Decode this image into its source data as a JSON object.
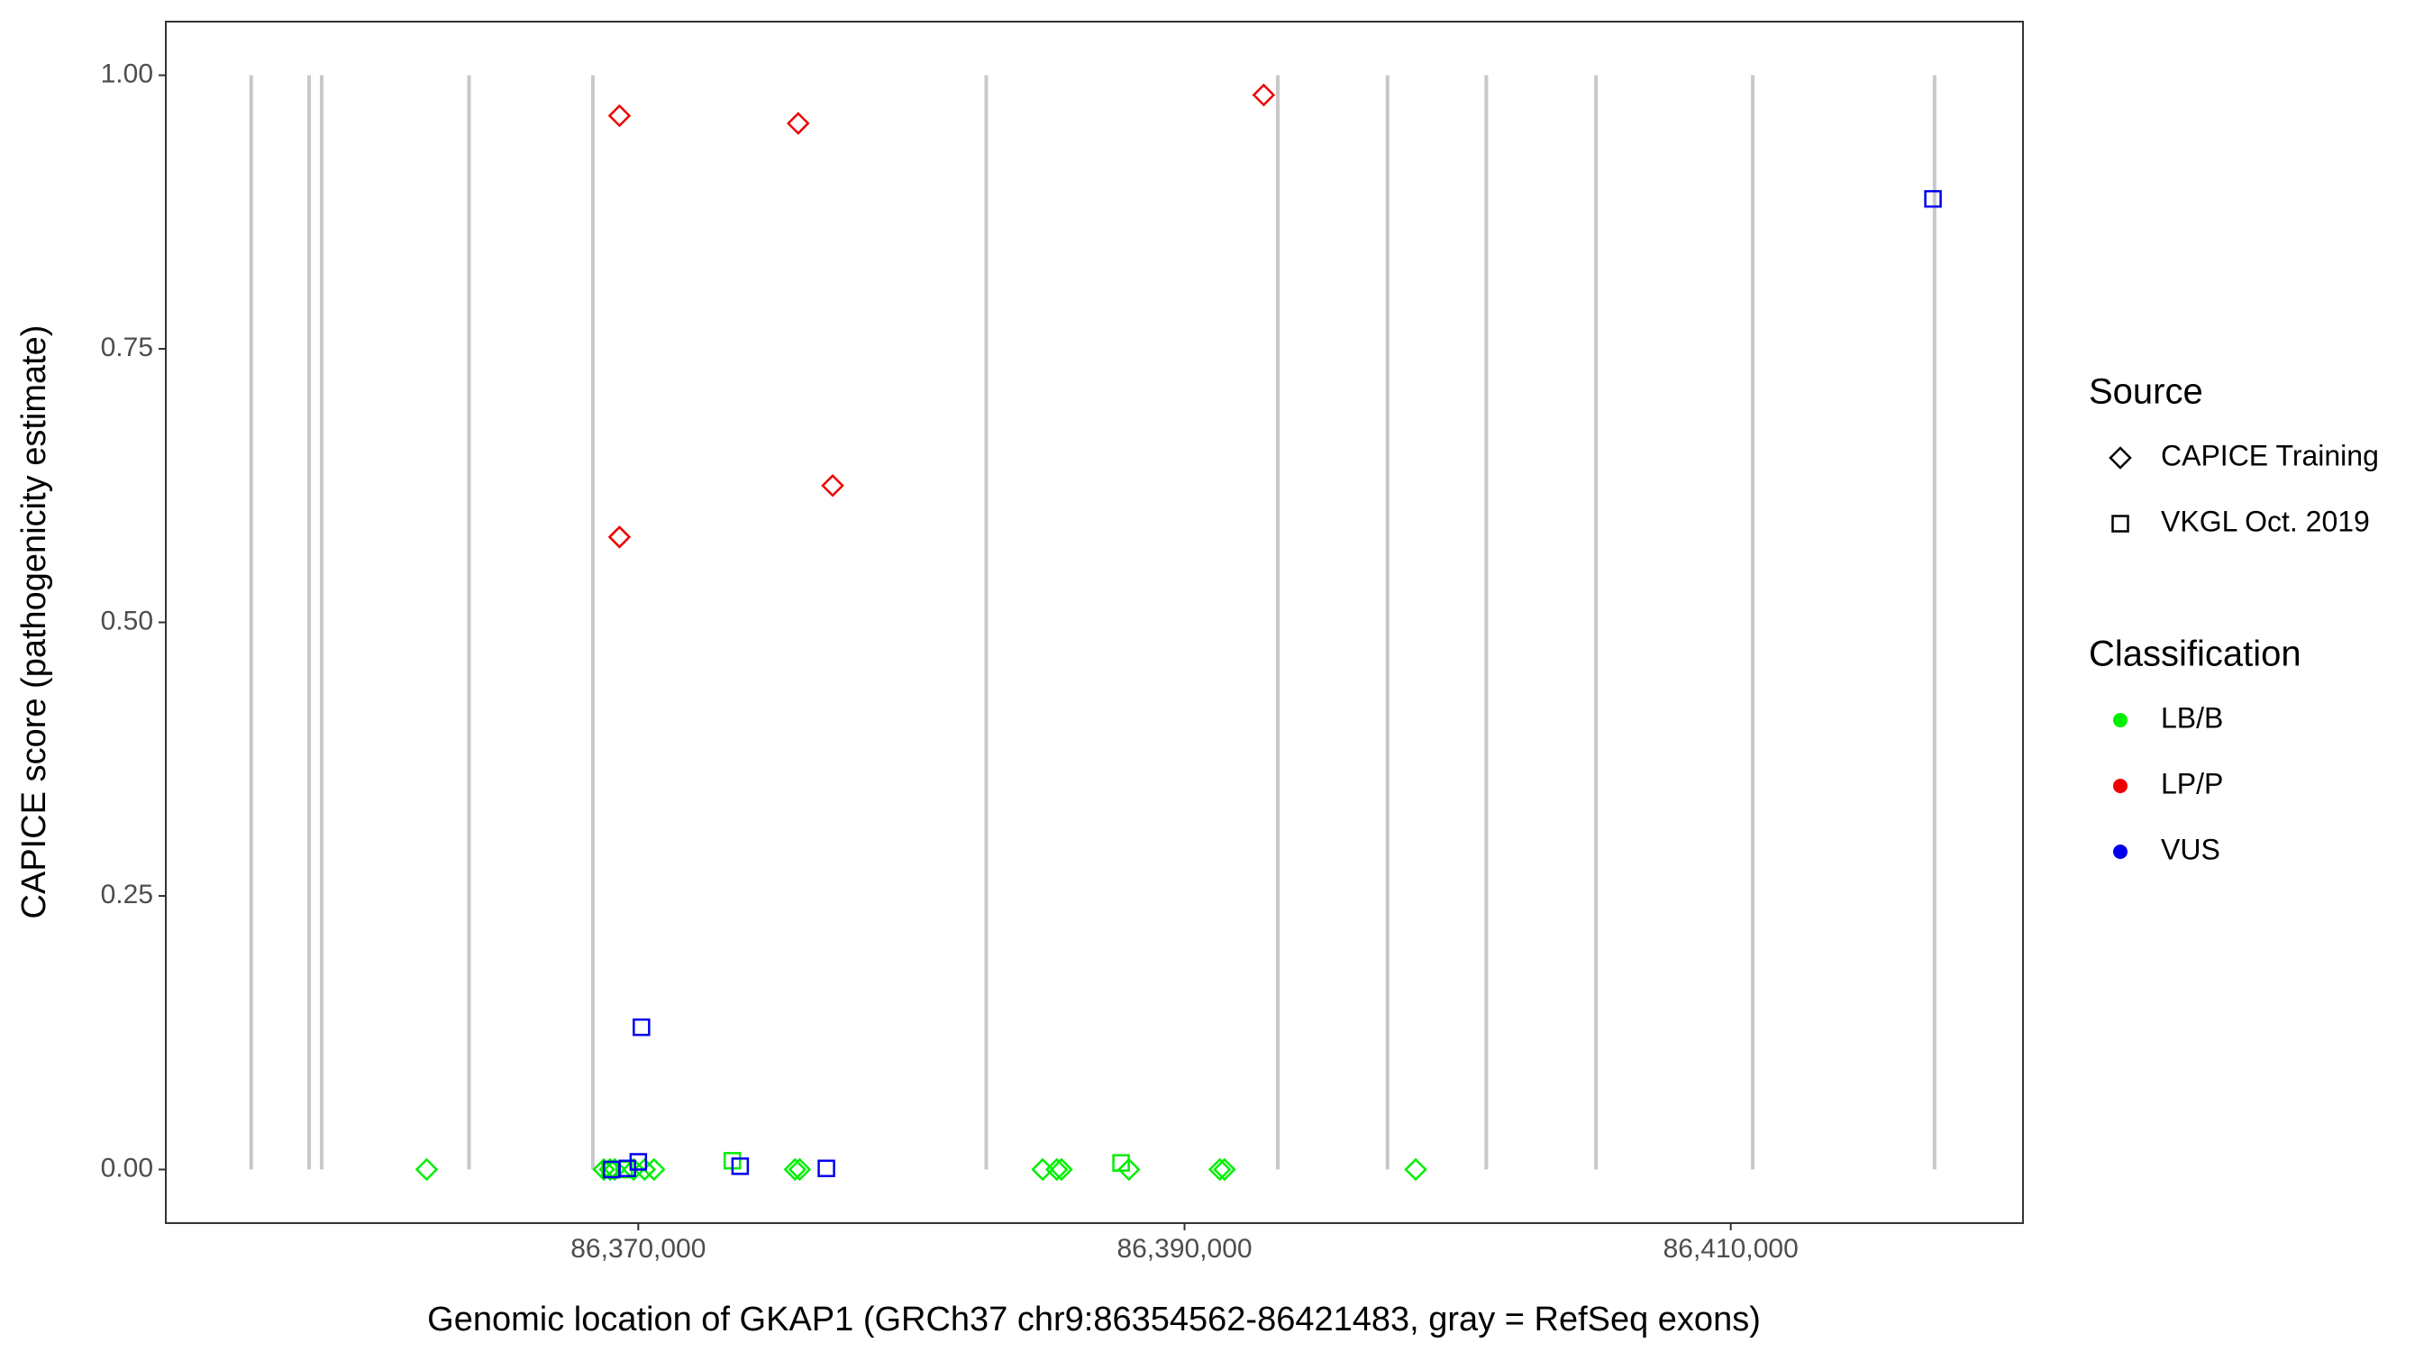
{
  "chart_data": {
    "type": "scatter",
    "x_label": "Genomic location of GKAP1 (GRCh37 chr9:86354562-86421483, gray = RefSeq exons)",
    "y_label": "CAPICE score (pathogenicity estimate)",
    "xlim": [
      86352700,
      86420700
    ],
    "ylim": [
      -0.049,
      1.049
    ],
    "xticks": [
      {
        "value": 86370000,
        "label": "86,370,000"
      },
      {
        "value": 86390000,
        "label": "86,390,000"
      },
      {
        "value": 86410000,
        "label": "86,410,000"
      }
    ],
    "yticks": [
      {
        "value": 0,
        "label": "0.00"
      },
      {
        "value": 0.25,
        "label": "0.25"
      },
      {
        "value": 0.5,
        "label": "0.50"
      },
      {
        "value": 0.75,
        "label": "0.75"
      },
      {
        "value": 1,
        "label": "1.00"
      }
    ],
    "exons": [
      86355825,
      86357948,
      86358407,
      86363802,
      86368336,
      86382741,
      86393415,
      86397432,
      86401048,
      86405065,
      86410804,
      86417462
    ],
    "exon_color": "#c8c8c8",
    "legend": {
      "source_title": "Source",
      "sources": [
        {
          "name": "CAPICE Training",
          "shape": "diamond"
        },
        {
          "name": "VKGL Oct. 2019",
          "shape": "square"
        }
      ],
      "classification_title": "Classification",
      "classes": [
        {
          "name": "LB/B",
          "color": "#00ee00"
        },
        {
          "name": "LP/P",
          "color": "#ee0000"
        },
        {
          "name": "VUS",
          "color": "#0000ee"
        }
      ]
    },
    "series": [
      {
        "shape": "diamond",
        "color": "#ee0000",
        "x": [
          86369311,
          86375854,
          86392899,
          86369311,
          86377116
        ],
        "values": [
          0.963,
          0.956,
          0.982,
          0.578,
          0.625
        ]
      },
      {
        "shape": "diamond",
        "color": "#00ee00",
        "x": [
          86362252,
          86368737,
          86368967,
          86369139,
          86369828,
          86370230,
          86370574,
          86375739,
          86375911,
          86384807,
          86385323,
          86385495,
          86387963,
          86391292,
          86391464,
          86398465
        ],
        "values": [
          0,
          0,
          0,
          0,
          0,
          0,
          0,
          0,
          0,
          0,
          0,
          0,
          0,
          0,
          0,
          0
        ]
      },
      {
        "shape": "square",
        "color": "#00ee00",
        "x": [
          86373443,
          86387676,
          86368967,
          86369483
        ],
        "values": [
          0.008,
          0.006,
          0,
          0
        ]
      },
      {
        "shape": "square",
        "color": "#0000ee",
        "x": [
          86417404,
          86370115,
          86370000,
          86373730,
          86376887,
          86369598,
          86369024
        ],
        "values": [
          0.887,
          0.13,
          0.007,
          0.003,
          0.001,
          0.001,
          0
        ]
      }
    ]
  }
}
